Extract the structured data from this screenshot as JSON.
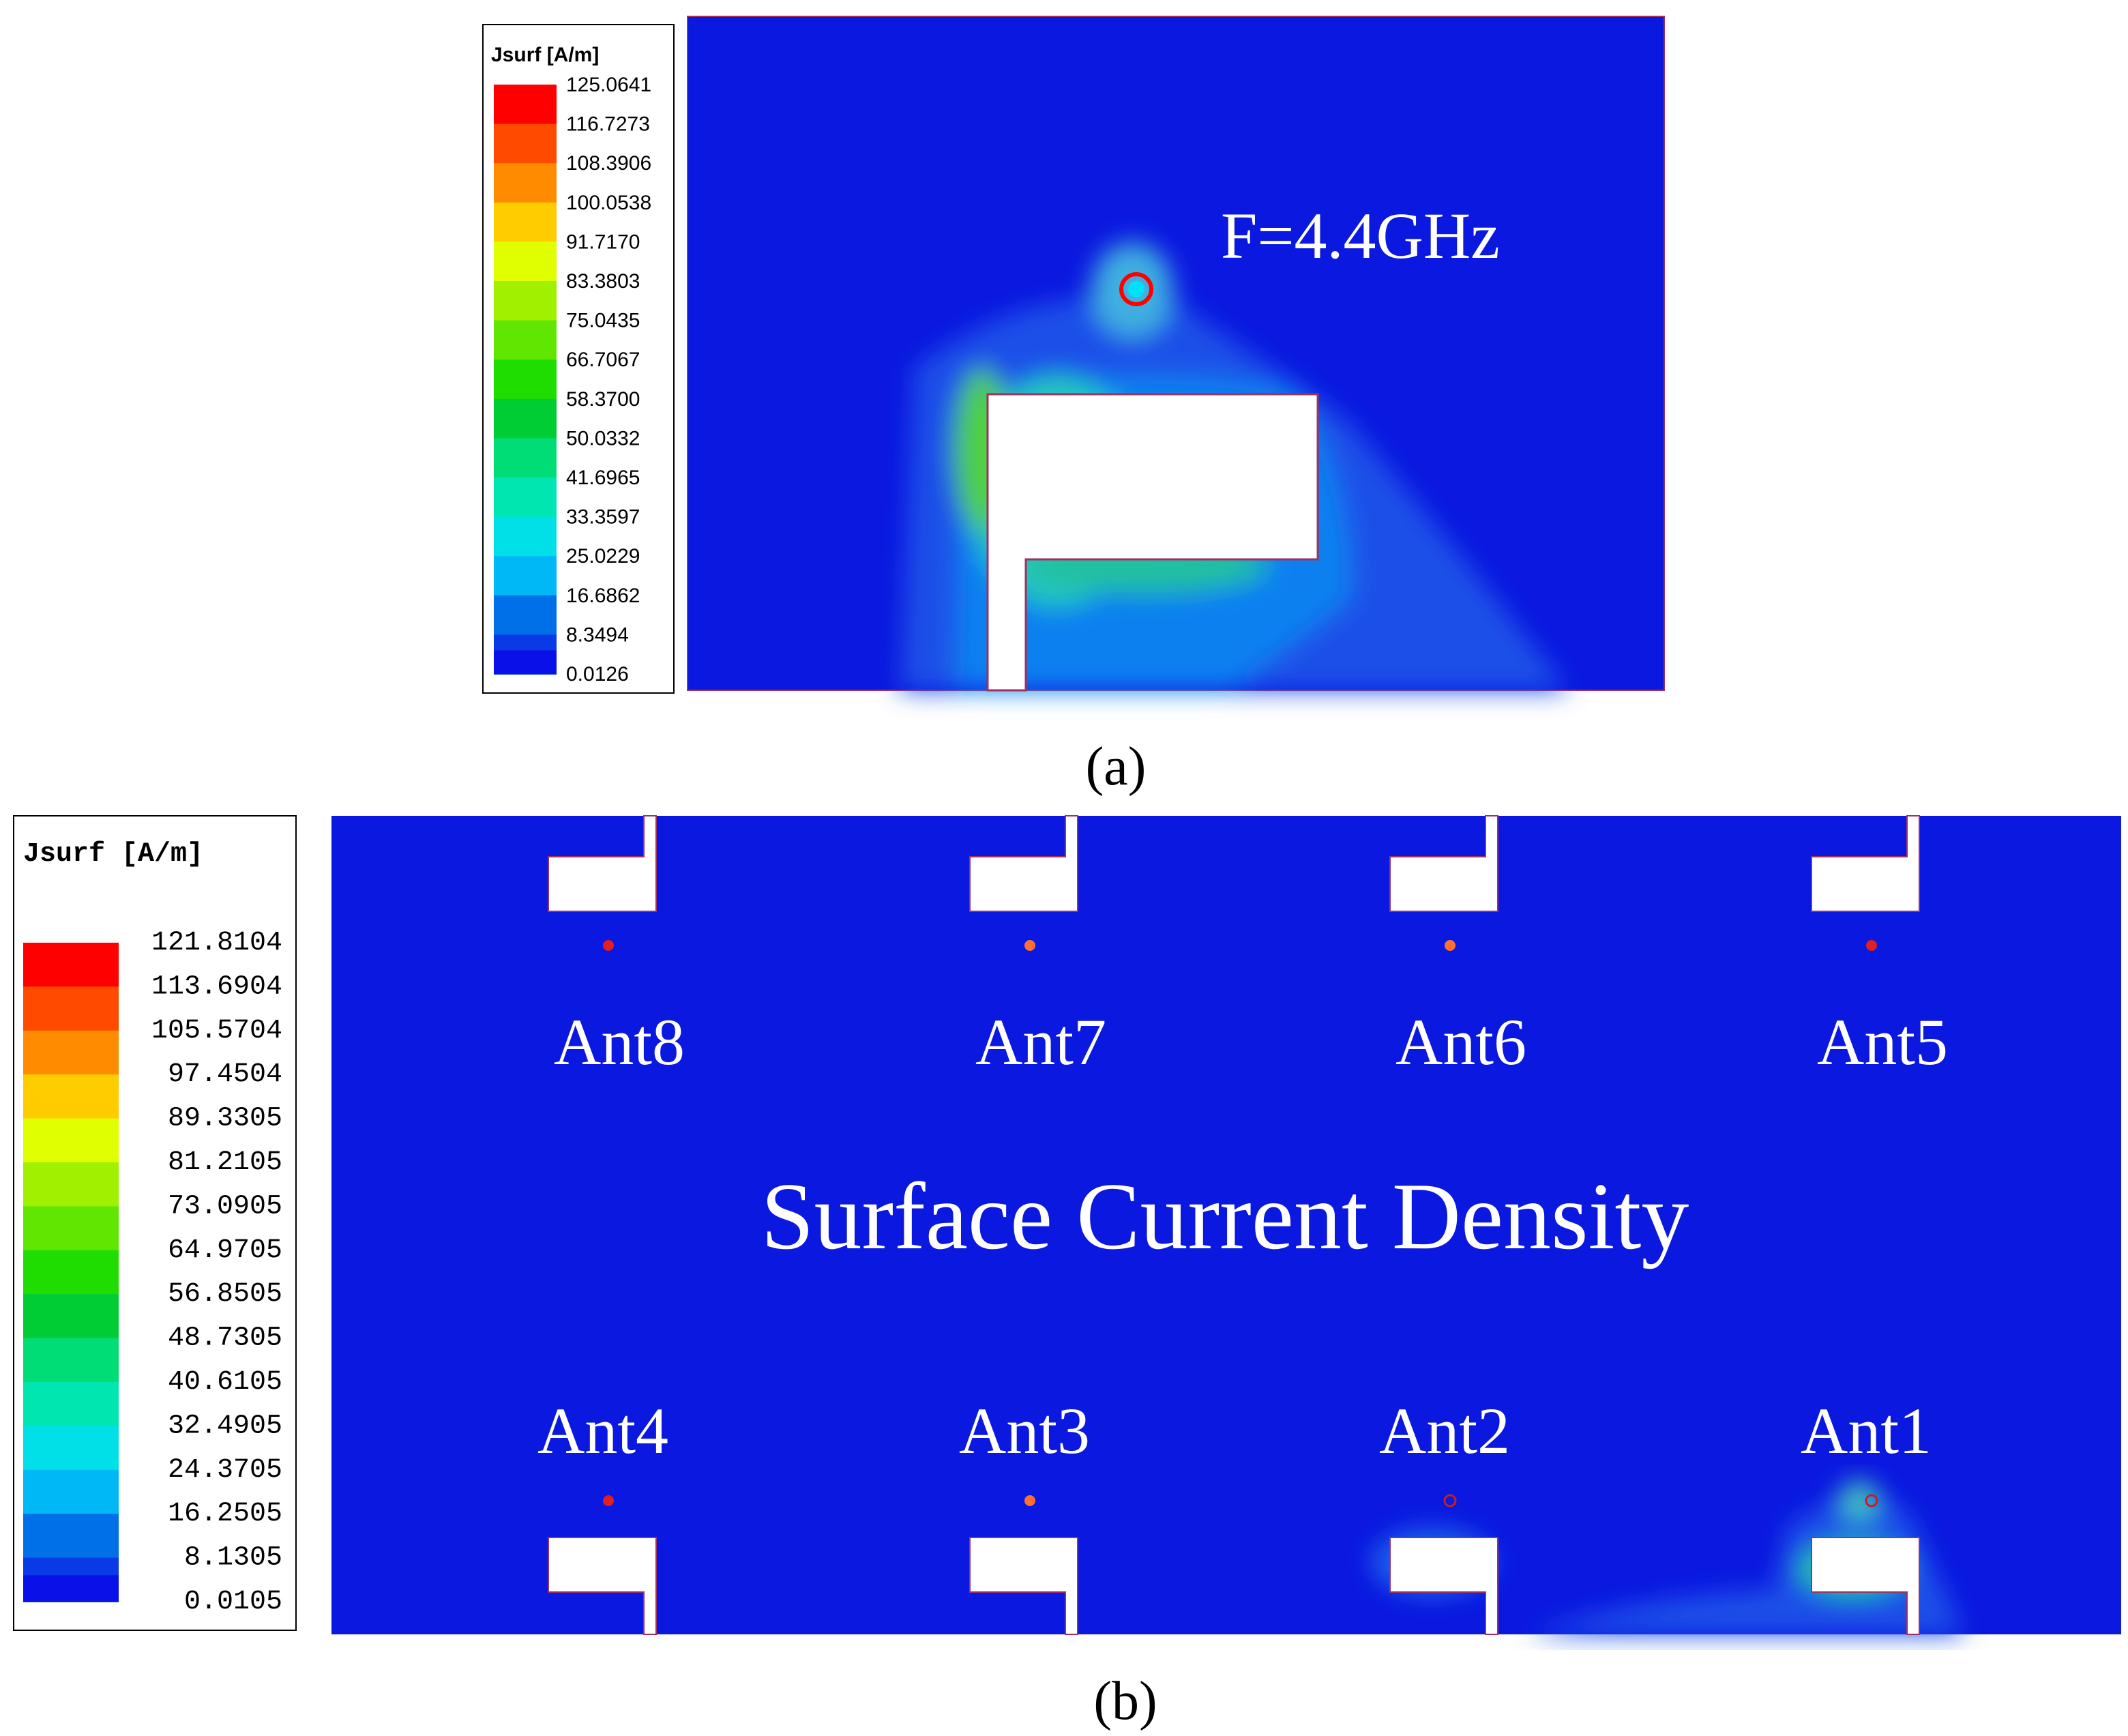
{
  "panel_a": {
    "legend": {
      "title": "Jsurf [A/m]",
      "levels": [
        "125.0641",
        "116.7273",
        "108.3906",
        "100.0538",
        "91.7170",
        "83.3803",
        "75.0435",
        "66.7067",
        "58.3700",
        "50.0332",
        "41.6965",
        "33.3597",
        "25.0229",
        "16.6862",
        "8.3494",
        "0.0126"
      ]
    },
    "annotation": "F=4.4GHz",
    "caption": "(a)"
  },
  "panel_b": {
    "legend": {
      "title": "Jsurf [A/m]",
      "levels": [
        "121.8104",
        "113.6904",
        "105.5704",
        "97.4504",
        "89.3305",
        "81.2105",
        "73.0905",
        "64.9705",
        "56.8505",
        "48.7305",
        "40.6105",
        "32.4905",
        "24.3705",
        "16.2505",
        "8.1305",
        "0.0105"
      ]
    },
    "antennas_top": [
      "Ant8",
      "Ant7",
      "Ant6",
      "Ant5"
    ],
    "antennas_bottom": [
      "Ant4",
      "Ant3",
      "Ant2",
      "Ant1"
    ],
    "center_label": "Surface Current Density",
    "caption": "(b)"
  }
}
